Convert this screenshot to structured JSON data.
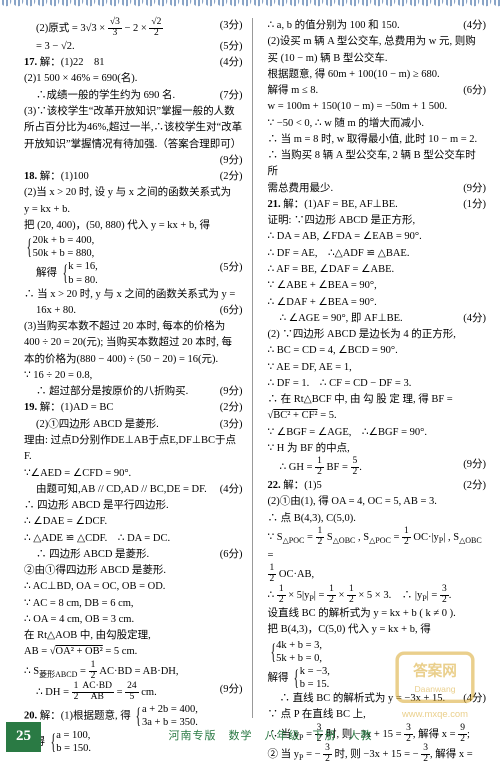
{
  "footer": {
    "page_number": "25",
    "text": "河南专版　数学　八年级　下册　人教"
  },
  "left": [
    {
      "cls": "row indent1",
      "txt": "(2)原式 = 3√3 × <f>√3|3</f> − 2 × <f>√2|2</f>",
      "score": "(3分)"
    },
    {
      "cls": "row indent1",
      "txt": "= 3 − √2.",
      "score": "(5分)"
    },
    {
      "cls": "row",
      "txt": "<b>17.</b> 解：(1)22　81",
      "score": "(4分)"
    },
    {
      "cls": "plain indent1",
      "txt": "(2)1 500 × 46% = 690(名)."
    },
    {
      "cls": "row indent1",
      "txt": "∴成绩一般的学生约为 690 名.",
      "score": "(7分)"
    },
    {
      "cls": "plain indent1",
      "txt": "(3)∵该校学生“改革开放知识”掌握一般的人数"
    },
    {
      "cls": "plain indent1",
      "txt": "所占百分比为46%,超过一半,∴该校学生对“改革"
    },
    {
      "cls": "plain indent1",
      "txt": "开放知识”掌握情况有待加强.（答案合理即可）"
    },
    {
      "cls": "row",
      "txt": "",
      "score": "(9分)"
    },
    {
      "cls": "row",
      "txt": "<b>18.</b> 解：(1)100",
      "score": "(2分)"
    },
    {
      "cls": "plain indent1",
      "txt": "(2)当 x > 20 时, 设 y 与 x 之间的函数关系式为"
    },
    {
      "cls": "plain indent1",
      "txt": "y = kx + b."
    },
    {
      "cls": "plain indent1",
      "txt": "把 (20, 400)，(50, 880) 代入 y = kx + b, 得"
    },
    {
      "cls": "plain indent1",
      "txt": "<sys>20k + b = 400,|50k + b = 880,</sys>"
    },
    {
      "cls": "row indent1",
      "txt": "解得 <sys>k = 16,|b = 80.</sys>",
      "score": "(5分)"
    },
    {
      "cls": "plain indent1",
      "txt": "∴ 当 x > 20 时, y 与 x 之间的函数关系式为 y ="
    },
    {
      "cls": "row indent1",
      "txt": "16x + 80.",
      "score": "(6分)"
    },
    {
      "cls": "plain indent1",
      "txt": "(3)当购买本数不超过 20 本时, 每本的价格为"
    },
    {
      "cls": "plain indent1",
      "txt": "400 ÷ 20 = 20(元); 当购买本数超过 20 本时, 每"
    },
    {
      "cls": "plain indent1",
      "txt": "本的价格为(880 − 400) ÷ (50 − 20) = 16(元)."
    },
    {
      "cls": "plain indent1",
      "txt": "∵ 16 ÷ 20 = 0.8,"
    },
    {
      "cls": "row indent1",
      "txt": "∴ 超过部分是按原价的八折购买.",
      "score": "(9分)"
    },
    {
      "cls": "row",
      "txt": "<b>19.</b> 解：(1)AD = BC",
      "score": "(2分)"
    },
    {
      "cls": "row indent1",
      "txt": "(2)①四边形 ABCD 是菱形.",
      "score": "(3分)"
    },
    {
      "cls": "plain indent1",
      "txt": "理由: 过点D分别作DE⊥AB于点E,DF⊥BC于点F."
    },
    {
      "cls": "plain indent1",
      "txt": "∵∠AED = ∠CFD = 90°."
    },
    {
      "cls": "row indent1",
      "txt": "由题可知,AB // CD,AD // BC,DE = DF.",
      "score": "(4分)"
    },
    {
      "cls": "plain indent1",
      "txt": "∴ 四边形 ABCD 是平行四边形."
    },
    {
      "cls": "plain indent1",
      "txt": "∴ ∠DAE = ∠DCF."
    },
    {
      "cls": "plain indent1",
      "txt": "∴ △ADE ≌ △CDF.　∴ DA = DC."
    },
    {
      "cls": "row indent1",
      "txt": "∴ 四边形 ABCD 是菱形.",
      "score": "(6分)"
    },
    {
      "cls": "plain indent1",
      "txt": "②由①得四边形 ABCD 是菱形."
    },
    {
      "cls": "plain indent1",
      "txt": "∴ AC⊥BD, OA = OC, OB = OD."
    },
    {
      "cls": "plain indent1",
      "txt": "∵ AC = 8 cm, DB = 6 cm,"
    },
    {
      "cls": "plain indent1",
      "txt": "∴ OA = 4 cm, OB = 3 cm."
    },
    {
      "cls": "plain indent1",
      "txt": "在 Rt△AOB 中, 由勾股定理,"
    },
    {
      "cls": "plain indent1",
      "txt": "AB = √<o>OA² + OB²</o> = 5 cm."
    },
    {
      "cls": "plain indent1",
      "txt": "∴ S<sub>菱形ABCD</sub> = <f>1|2</f> AC·BD = AB·DH,"
    },
    {
      "cls": "row indent1",
      "txt": "∴ DH = <f>1|2</f><f>AC·BD|AB</f> = <f>24|5</f> cm.",
      "score": "(9分)"
    },
    {
      "cls": "plain",
      "txt": "<b>20.</b> 解：(1)根据题意, 得 <sys>a + 2b = 400,|3a + b = 350.</sys>"
    },
    {
      "cls": "plain indent1",
      "txt": "解得 <sys>a = 100,|b = 150.</sys>"
    }
  ],
  "right": [
    {
      "cls": "row",
      "txt": "∴ a, b 的值分别为 100 和 150.",
      "score": "(4分)"
    },
    {
      "cls": "plain",
      "txt": "(2)设买 m 辆 A 型公交车, 总费用为 w 元, 则购"
    },
    {
      "cls": "plain",
      "txt": "买 (10 − m) 辆 B 型公交车."
    },
    {
      "cls": "plain",
      "txt": "根据题意, 得 60m + 100(10 − m) ≥ 680."
    },
    {
      "cls": "row",
      "txt": "解得 m ≤ 8.",
      "score": "(6分)"
    },
    {
      "cls": "plain",
      "txt": "w = 100m + 150(10 − m) = −50m + 1 500."
    },
    {
      "cls": "plain",
      "txt": "∵ −50 < 0, ∴ w 随 m 的增大而减小."
    },
    {
      "cls": "plain",
      "txt": "∴ 当 m = 8 时, w 取得最小值, 此时 10 − m = 2."
    },
    {
      "cls": "plain",
      "txt": "∴ 当购买 8 辆 A 型公交车, 2 辆 B 型公交车时所"
    },
    {
      "cls": "row",
      "txt": "需总费用最少.",
      "score": "(9分)"
    },
    {
      "cls": "row",
      "txt": "<b>21.</b> 解：(1)AF = BE, AF⊥BE.",
      "score": "(1分)"
    },
    {
      "cls": "plain indent1",
      "txt": "证明: ∵四边形 ABCD 是正方形,"
    },
    {
      "cls": "plain indent1",
      "txt": "∴ DA = AB, ∠FDA = ∠EAB = 90°."
    },
    {
      "cls": "plain indent1",
      "txt": "∴ DF = AE,　∴△ADF ≌ △BAE."
    },
    {
      "cls": "plain indent1",
      "txt": "∴ AF = BE, ∠DAF = ∠ABE."
    },
    {
      "cls": "plain indent1",
      "txt": "∵ ∠ABE + ∠BEA = 90°,"
    },
    {
      "cls": "plain indent1",
      "txt": "∴ ∠DAF + ∠BEA = 90°."
    },
    {
      "cls": "row indent1",
      "txt": "∴ ∠AGE = 90°, 即 AF⊥BE.",
      "score": "(4分)"
    },
    {
      "cls": "plain indent1",
      "txt": "(2) ∵四边形 ABCD 是边长为 4 的正方形,"
    },
    {
      "cls": "plain indent1",
      "txt": "∴ BC = CD = 4, ∠BCD = 90°."
    },
    {
      "cls": "plain indent1",
      "txt": "∵ AE = DF, AE = 1,"
    },
    {
      "cls": "plain indent1",
      "txt": "∴ DF = 1.　∴ CF = CD − DF = 3."
    },
    {
      "cls": "plain indent1",
      "txt": "∴ 在 Rt△BCF 中, 由 勾 股 定 理, 得 BF ="
    },
    {
      "cls": "plain indent1",
      "txt": "√<o>BC² + CF²</o> = 5."
    },
    {
      "cls": "plain indent1",
      "txt": "∵ ∠BGF = ∠AGE,　∴∠BGF = 90°."
    },
    {
      "cls": "plain indent1",
      "txt": "∵ H 为 BF 的中点,"
    },
    {
      "cls": "row indent1",
      "txt": "∴ GH = <f>1|2</f> BF = <f>5|2</f>.",
      "score": "(9分)"
    },
    {
      "cls": "row",
      "txt": "<b>22.</b> 解：(1)5",
      "score": "(2分)"
    },
    {
      "cls": "plain indent1",
      "txt": "(2)①由(1), 得 OA = 4, OC = 5, AB = 3."
    },
    {
      "cls": "plain indent1",
      "txt": "∴ 点 B(4,3), C(5,0)."
    },
    {
      "cls": "plain indent1",
      "txt": "∵ S<sub>△POC</sub> = <f>1|2</f> S<sub>△OBC</sub> , S<sub>△POC</sub> = <f>1|2</f> OC·|y<sub>P</sub>| , S<sub>△OBC</sub> ="
    },
    {
      "cls": "plain indent1",
      "txt": "<f>1|2</f> OC·AB,"
    },
    {
      "cls": "plain indent1",
      "txt": "∴ <f>1|2</f> × 5|y<sub>P</sub>| = <f>1|2</f> × <f>1|2</f> × 5 × 3.　∴ |y<sub>P</sub>| = <f>3|2</f>."
    },
    {
      "cls": "plain indent1",
      "txt": "设直线 BC 的解析式为 y = kx + b ( k ≠ 0 )."
    },
    {
      "cls": "plain indent1",
      "txt": "把 B(4,3)，C(5,0) 代入 y = kx + b, 得"
    },
    {
      "cls": "plain indent1",
      "txt": "<sys>4k + b = 3,|5k + b = 0,</sys>"
    },
    {
      "cls": "plain indent1",
      "txt": "解得 <sys>k = −3,|b = 15.</sys>"
    },
    {
      "cls": "row indent1",
      "txt": "∴ 直线 BC 的解析式为 y = −3x + 15.",
      "score": "(4分)"
    },
    {
      "cls": "plain indent1",
      "txt": "∵ 点 P 在直线 BC 上,"
    },
    {
      "cls": "plain indent1",
      "txt": "∴ 当 y<sub>P</sub> = <f>3|2</f> 时, 则 −3x + 15 = <f>3|2</f>, 解得 x = <f>9|2</f>;"
    },
    {
      "cls": "plain indent1",
      "txt": "② 当 y<sub>P</sub> = − <f>3|2</f> 时, 则 −3x + 15 = − <f>3|2</f>, 解得 x ="
    }
  ]
}
